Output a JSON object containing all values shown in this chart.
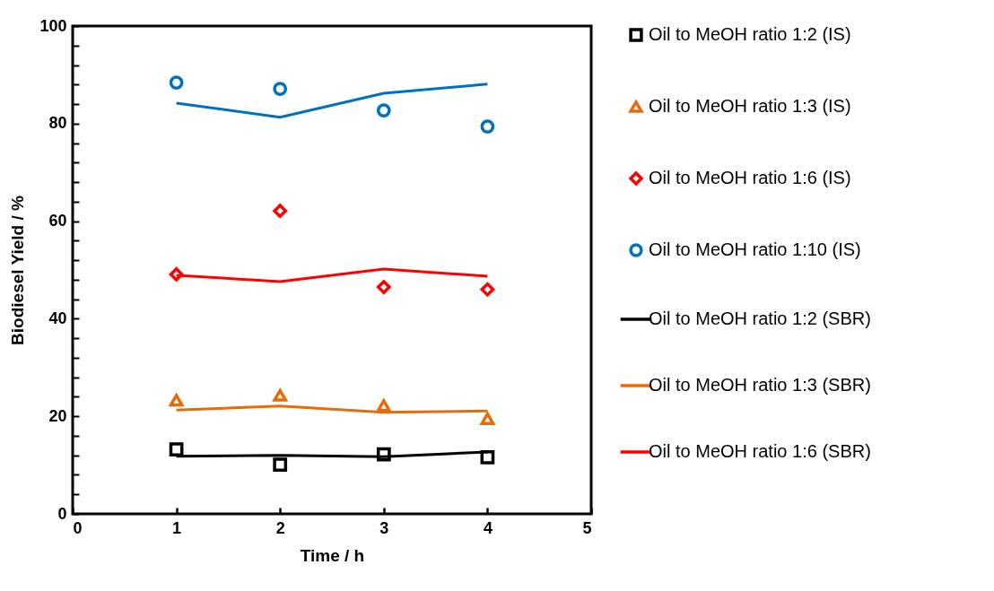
{
  "chart_data": {
    "type": "line",
    "xlabel": "Time / h",
    "ylabel": "Biodiesel Yield / %",
    "x": [
      1,
      2,
      3,
      4
    ],
    "xlim": [
      0,
      5
    ],
    "xticks": [
      0,
      1,
      2,
      3,
      4,
      5
    ],
    "ylim": [
      0,
      100
    ],
    "yticks": [
      0,
      {
        "value": 4,
        "label": null
      },
      {
        "value": 8,
        "label": null
      },
      {
        "value": 12,
        "label": null
      },
      {
        "value": 16,
        "label": null
      },
      20,
      {
        "value": 24,
        "label": null
      },
      {
        "value": 28,
        "label": null
      },
      {
        "value": 32,
        "label": null
      },
      {
        "value": 36,
        "label": null
      },
      40,
      {
        "value": 44,
        "label": null
      },
      {
        "value": 48,
        "label": null
      },
      {
        "value": 52,
        "label": null
      },
      {
        "value": 56,
        "label": null
      },
      60,
      {
        "value": 64,
        "label": null
      },
      {
        "value": 68,
        "label": null
      },
      {
        "value": 72,
        "label": null
      },
      {
        "value": 76,
        "label": null
      },
      80,
      {
        "value": 84,
        "label": null
      },
      {
        "value": 88,
        "label": null
      },
      {
        "value": 92,
        "label": null
      },
      {
        "value": 96,
        "label": null
      },
      100
    ],
    "legend": "right",
    "series": [
      {
        "name": "Oil to MeOH ratio 1:2 (IS)",
        "type": "scatter",
        "marker": "square",
        "color": "#000000",
        "values": [
          13.2,
          10.1,
          12.2,
          11.6
        ]
      },
      {
        "name": "Oil to MeOH ratio 1:3 (IS)",
        "type": "scatter",
        "marker": "triangle",
        "color": "#e46c0a",
        "values": [
          23.3,
          24.3,
          22.2,
          19.5
        ]
      },
      {
        "name": "Oil to MeOH ratio 1:6 (IS)",
        "type": "scatter",
        "marker": "diamond",
        "color": "#ff0000",
        "values": [
          49.1,
          62.1,
          46.5,
          46.0
        ]
      },
      {
        "name": "Oil to MeOH ratio 1:10 (IS)",
        "type": "scatter",
        "marker": "circle",
        "color": "#0070c0",
        "values": [
          88.4,
          87.1,
          82.7,
          79.4
        ]
      },
      {
        "name": "Oil to MeOH ratio 1:2 (SBR)",
        "type": "line",
        "color": "#000000",
        "values": [
          11.8,
          12.0,
          11.7,
          12.7
        ]
      },
      {
        "name": "Oil to MeOH ratio 1:3 (SBR)",
        "type": "line",
        "color": "#e46c0a",
        "values": [
          21.3,
          22.1,
          20.8,
          21.1
        ]
      },
      {
        "name": "Oil to MeOH ratio 1:6 (SBR)",
        "type": "line",
        "color": "#ff0000",
        "values": [
          48.9,
          47.6,
          50.2,
          48.7
        ]
      },
      {
        "type": "line",
        "color": "#0070c0",
        "values": [
          84.2,
          81.3,
          86.2,
          88.1
        ]
      }
    ]
  }
}
